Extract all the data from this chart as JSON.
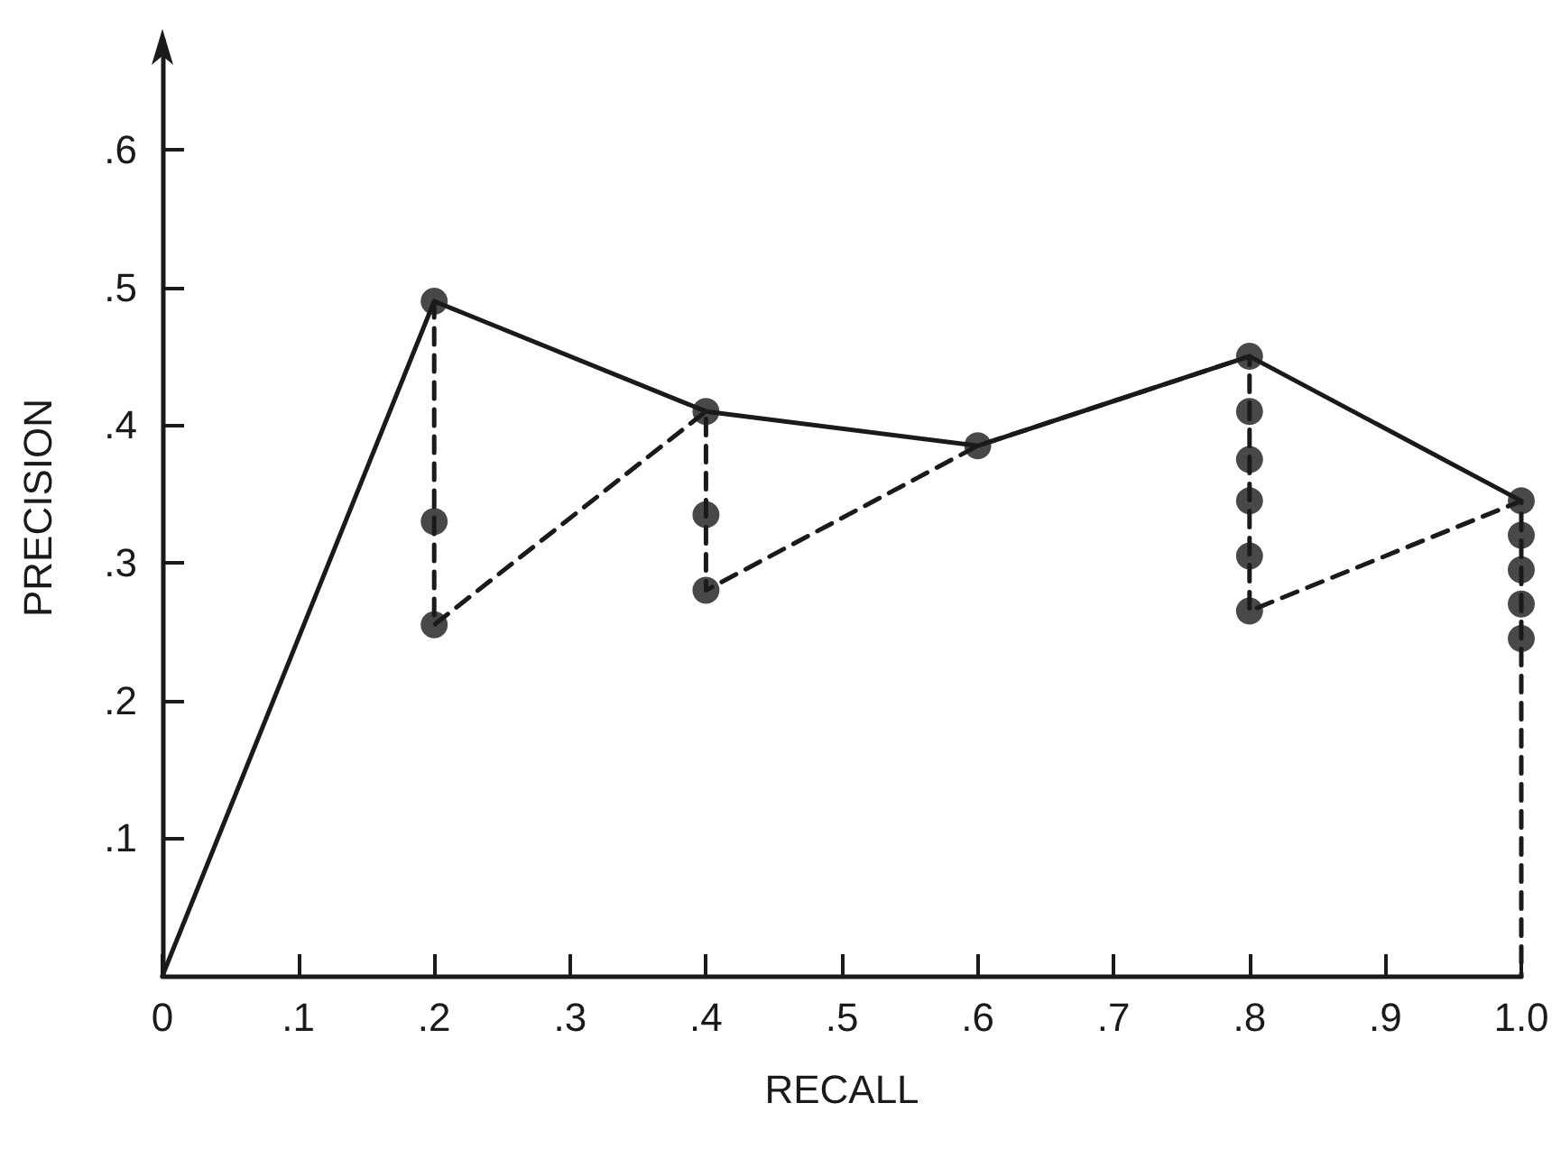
{
  "chart_data": {
    "type": "line",
    "xlabel": "RECALL",
    "ylabel": "PRECISION",
    "xlim": [
      0,
      1.0
    ],
    "ylim": [
      0,
      0.68
    ],
    "xticks": [
      {
        "value": 0,
        "label": "0"
      },
      {
        "value": 0.1,
        "label": ".1"
      },
      {
        "value": 0.2,
        "label": ".2"
      },
      {
        "value": 0.3,
        "label": ".3"
      },
      {
        "value": 0.4,
        "label": ".4"
      },
      {
        "value": 0.5,
        "label": ".5"
      },
      {
        "value": 0.6,
        "label": ".6"
      },
      {
        "value": 0.7,
        "label": ".7"
      },
      {
        "value": 0.8,
        "label": ".8"
      },
      {
        "value": 0.9,
        "label": ".9"
      },
      {
        "value": 1.0,
        "label": "1.0"
      }
    ],
    "yticks": [
      {
        "value": 0.1,
        "label": ".1"
      },
      {
        "value": 0.2,
        "label": ".2"
      },
      {
        "value": 0.3,
        "label": ".3"
      },
      {
        "value": 0.4,
        "label": ".4"
      },
      {
        "value": 0.5,
        "label": ".5"
      },
      {
        "value": 0.6,
        "label": ".6"
      }
    ],
    "grid": false,
    "series": [
      {
        "color": "#1a1a1a",
        "line_style": "solid",
        "marker": "none",
        "x": [
          0,
          0.2,
          0.4,
          0.6,
          0.8,
          1.0
        ],
        "values": [
          0,
          0.49,
          0.41,
          0.385,
          0.45,
          0.345
        ]
      },
      {
        "color": "#1a1a1a",
        "line_style": "dashed",
        "marker": "none",
        "x": [
          0.2,
          0.2,
          0.4,
          0.4,
          0.6,
          0.8,
          0.8,
          1.0,
          1.0
        ],
        "values": [
          0.49,
          0.255,
          0.41,
          0.28,
          0.385,
          0.45,
          0.265,
          0.345,
          0
        ]
      },
      {
        "type": "scatter",
        "color": "#1a1a1a",
        "marker": "circle",
        "x": [
          0.2,
          0.2,
          0.2,
          0.4,
          0.4,
          0.4,
          0.6,
          0.8,
          0.8,
          0.8,
          0.8,
          0.8,
          0.8,
          1.0,
          1.0,
          1.0,
          1.0,
          1.0
        ],
        "values": [
          0.49,
          0.33,
          0.255,
          0.41,
          0.335,
          0.28,
          0.385,
          0.45,
          0.41,
          0.375,
          0.345,
          0.305,
          0.265,
          0.345,
          0.32,
          0.295,
          0.27,
          0.245
        ]
      }
    ]
  }
}
